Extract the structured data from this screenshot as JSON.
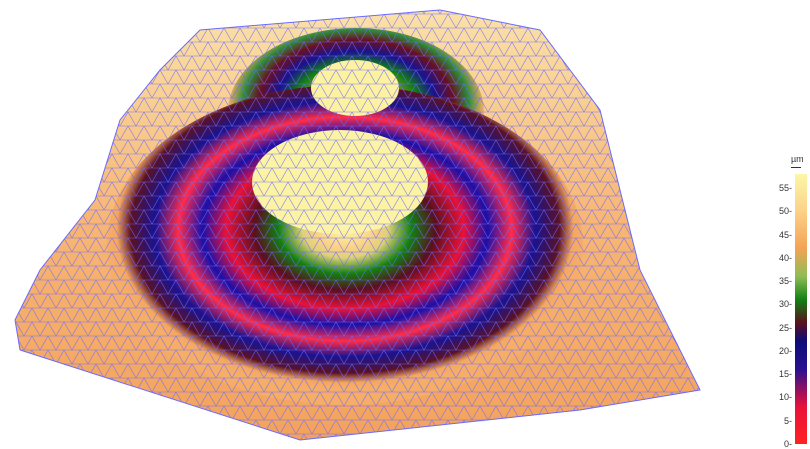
{
  "legend": {
    "unit": "µm",
    "ticks": [
      "55-",
      "50-",
      "45-",
      "40-",
      "35-",
      "30-",
      "25-",
      "20-",
      "15-",
      "10-",
      "5-",
      "0-"
    ],
    "tick_values": [
      55,
      50,
      45,
      40,
      35,
      30,
      25,
      20,
      15,
      10,
      5,
      0
    ],
    "range": [
      0,
      58
    ],
    "colormap": [
      {
        "value": 0,
        "color": "#ff2222"
      },
      {
        "value": 8,
        "color": "#e8123a"
      },
      {
        "value": 16,
        "color": "#2a1090"
      },
      {
        "value": 22,
        "color": "#0c0c78"
      },
      {
        "value": 26,
        "color": "#5a1020"
      },
      {
        "value": 31,
        "color": "#128012"
      },
      {
        "value": 36,
        "color": "#8fbd55"
      },
      {
        "value": 42,
        "color": "#f3a355"
      },
      {
        "value": 50,
        "color": "#fbd188"
      },
      {
        "value": 58,
        "color": "#fdf7a8"
      }
    ]
  },
  "colors": {
    "surface_base": "#f6ad68",
    "mesh": "#6a6aff",
    "background": "#ffffff"
  }
}
